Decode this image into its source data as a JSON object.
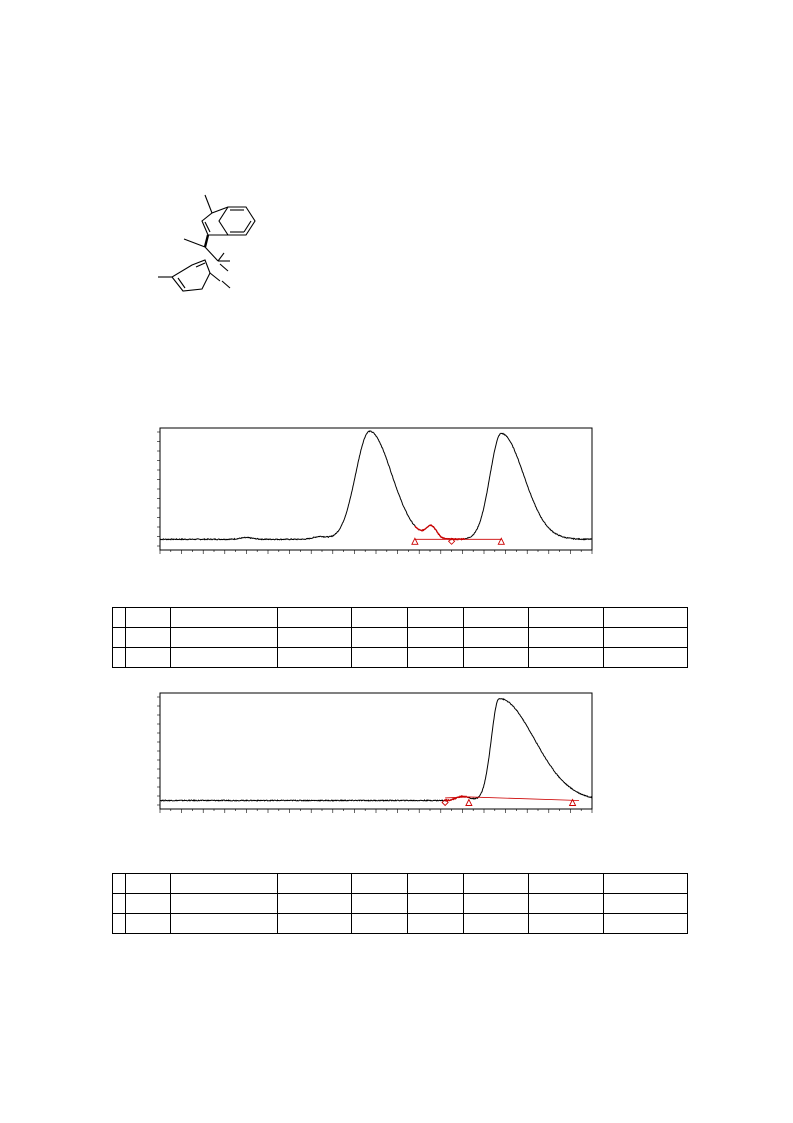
{
  "chart_data": [
    {
      "type": "line",
      "x_range": [
        0,
        100
      ],
      "y_range": [
        0,
        100
      ],
      "series": [
        {
          "color": "#000000",
          "peaks": [
            {
              "x": 48.5,
              "height": 100,
              "width": 3.2,
              "tail": 1.6
            },
            {
              "x": 62.8,
              "height": 11,
              "width": 1.2,
              "tail": 1.0
            },
            {
              "x": 79.0,
              "height": 98,
              "width": 2.6,
              "tail": 2.0
            },
            {
              "x": 37.0,
              "height": 2.5,
              "width": 1.5,
              "tail": 1.0
            },
            {
              "x": 20.0,
              "height": 1.5,
              "width": 1.5,
              "tail": 1.0
            }
          ],
          "baseline": 2.5
        }
      ],
      "integration": {
        "color": "#cc0000",
        "segment": [
          59.0,
          70.5
        ],
        "markers": [
          {
            "shape": "triangle",
            "x": 59.0
          },
          {
            "shape": "diamond",
            "x": 67.5
          },
          {
            "shape": "triangle",
            "x": 79.0
          }
        ]
      },
      "ticks_x": 20,
      "ticks_y": 12
    },
    {
      "type": "line",
      "x_range": [
        0,
        100
      ],
      "y_range": [
        0,
        100
      ],
      "series": [
        {
          "color": "#000000",
          "peaks": [
            {
              "x": 78.5,
              "height": 100,
              "width": 1.8,
              "tail": 4.5
            },
            {
              "x": 70.0,
              "height": 4.0,
              "width": 1.4,
              "tail": 1.2
            }
          ],
          "baseline": 0.5
        }
      ],
      "integration": {
        "color": "#cc0000",
        "segment": [
          66.0,
          71.5,
          97.0
        ],
        "markers": [
          {
            "shape": "diamond",
            "x": 66.0
          },
          {
            "shape": "triangle",
            "x": 71.5
          },
          {
            "shape": "triangle",
            "x": 95.5
          }
        ]
      },
      "ticks_x": 20,
      "ticks_y": 12
    }
  ],
  "tables": [
    {
      "rows": 3,
      "cols": 9
    },
    {
      "rows": 3,
      "cols": 9
    }
  ]
}
